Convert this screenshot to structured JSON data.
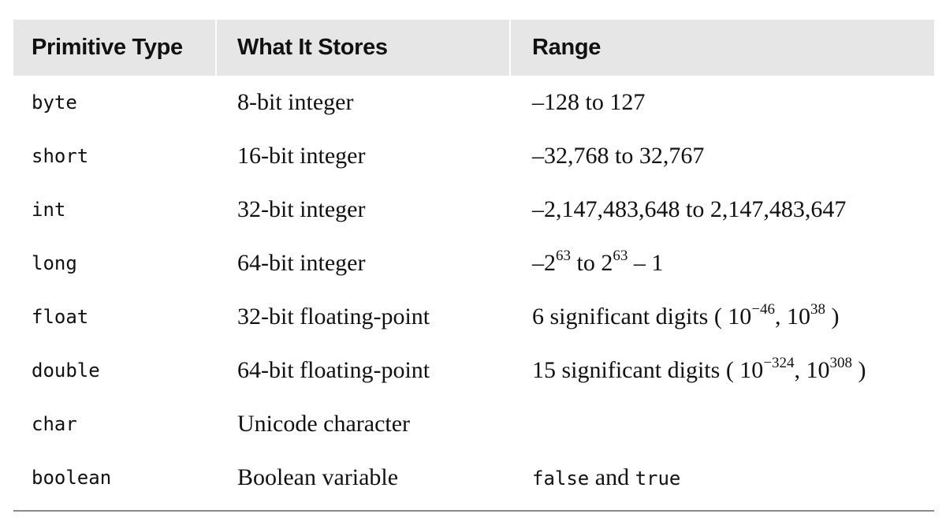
{
  "header": {
    "col1": "Primitive Type",
    "col2": "What It Stores",
    "col3": "Range"
  },
  "rows": [
    {
      "type": "byte",
      "stores": "8-bit integer",
      "range": "–128 to 127"
    },
    {
      "type": "short",
      "stores": "16-bit integer",
      "range": "–32,768 to 32,767"
    },
    {
      "type": "int",
      "stores": "32-bit integer",
      "range": "–2,147,483,648 to 2,147,483,647"
    },
    {
      "type": "long",
      "stores": "64-bit integer",
      "range_parts": {
        "a": "–2",
        "exp1": "63",
        "b": " to 2",
        "exp2": "63",
        "c": " – 1"
      }
    },
    {
      "type": "float",
      "stores": "32-bit floating-point",
      "range_parts": {
        "a": "6 significant digits ( 10",
        "exp1": "−46",
        "b": ", 10",
        "exp2": "38",
        "c": " )"
      }
    },
    {
      "type": "double",
      "stores": "64-bit floating-point",
      "range_parts": {
        "a": "15 significant digits ( 10",
        "exp1": "−324",
        "b": ", 10",
        "exp2": "308",
        "c": " )"
      }
    },
    {
      "type": "char",
      "stores": "Unicode character",
      "range": ""
    },
    {
      "type": "boolean",
      "stores": "Boolean variable",
      "range_parts": {
        "false_kw": "false",
        "and_text": " and ",
        "true_kw": "true"
      }
    }
  ]
}
